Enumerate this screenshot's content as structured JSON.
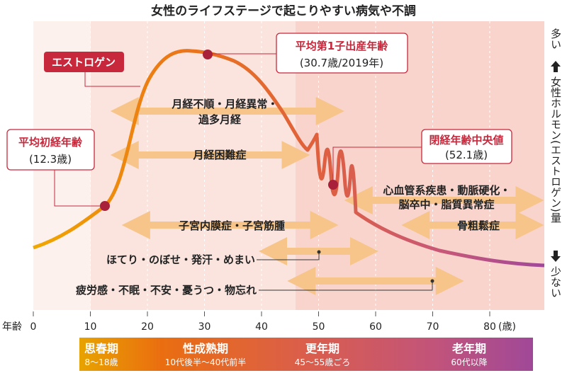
{
  "title": "女性のライフステージで起こりやすい病気や不調",
  "y_axis": {
    "top": "多い",
    "label": "女性ホルモン(エストロゲン)量",
    "bottom": "少ない"
  },
  "x_axis": {
    "label": "年齢",
    "unit": "(歳)",
    "ticks": [
      "0",
      "10",
      "20",
      "30",
      "40",
      "50",
      "60",
      "70",
      "80"
    ]
  },
  "curve_label": "エストロゲン",
  "callouts": {
    "menarche": {
      "title": "平均初経年齢",
      "value": "(12.3歳)",
      "age": 12.3
    },
    "first_birth": {
      "title": "平均第1子出産年齢",
      "value": "(30.7歳/2019年)",
      "age": 30.7
    },
    "menopause": {
      "title": "閉経年齢中央値",
      "value": "(52.1歳)",
      "age": 52.1
    }
  },
  "conditions": [
    {
      "lines": [
        "月経不順・月経異常・",
        "過多月経"
      ],
      "from": 15,
      "to": 53
    },
    {
      "lines": [
        "月経困難症"
      ],
      "from": 15,
      "to": 47
    },
    {
      "lines": [
        "心血管系疾患・動脈硬化・",
        "脳卒中・脂質異常症"
      ],
      "from": 56,
      "to": 88
    },
    {
      "lines": [
        "子宮内膜症・子宮筋腫"
      ],
      "from": 17,
      "to": 52
    },
    {
      "lines": [
        "骨粗鬆症"
      ],
      "from": 66,
      "to": 88
    },
    {
      "lines": [
        "ほてり・のぼせ・発汗・めまい"
      ],
      "from": 41,
      "to": 59
    },
    {
      "lines": [
        "疲労感・不眠・不安・憂うつ・物忘れ"
      ],
      "from": 46,
      "to": 74
    }
  ],
  "stages": [
    {
      "name": "思春期",
      "range": "8〜18歳"
    },
    {
      "name": "性成熟期",
      "range": "10代後半〜40代前半"
    },
    {
      "name": "更年期",
      "range": "45〜55歳ごろ"
    },
    {
      "name": "老年期",
      "range": "60代以降"
    }
  ],
  "colors": {
    "callout_red": "#c8283c",
    "arrow": "#f7c48a",
    "bg_child": "#fdf1ee",
    "bg_adult": "#fbe4de",
    "bg_meno": "#f8d4cc"
  }
}
